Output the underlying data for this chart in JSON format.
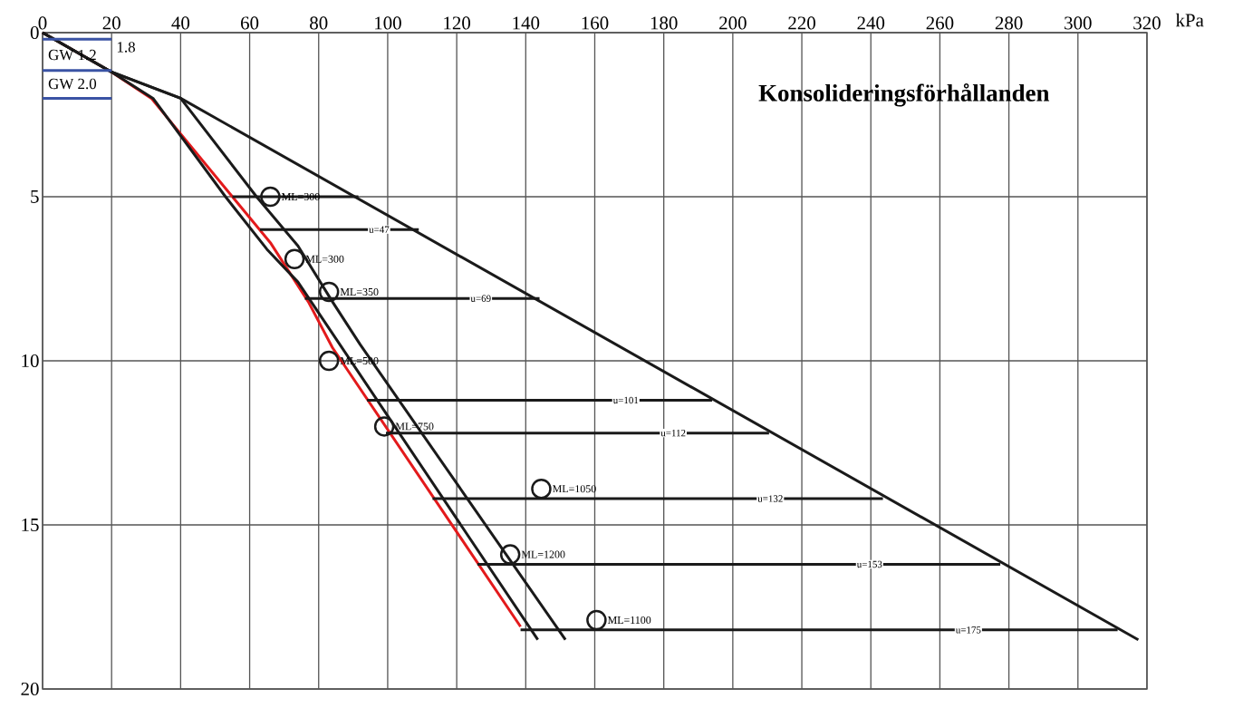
{
  "chart_data": {
    "type": "line",
    "title": "Konsolideringsförhållanden",
    "xlabel": "kPa",
    "xlim": [
      0,
      320
    ],
    "xticks": [
      0,
      20,
      40,
      60,
      80,
      100,
      120,
      140,
      160,
      180,
      200,
      220,
      240,
      260,
      280,
      300,
      320
    ],
    "ylim": [
      20,
      0
    ],
    "yticks": [
      0,
      5,
      10,
      15,
      20
    ],
    "grid": true,
    "series": [
      {
        "color": "#e31a1c",
        "x": [
          0,
          20,
          31.5,
          55,
          66,
          77,
          84,
          138.5
        ],
        "values": [
          0,
          1.2,
          2,
          5,
          6.4,
          8.2,
          9.6,
          18.1
        ]
      },
      {
        "color": "#1a1a1a",
        "x": [
          0,
          20,
          32,
          53,
          65,
          74,
          143.5
        ],
        "values": [
          0,
          1.2,
          2,
          5,
          6.6,
          7.6,
          18.5
        ]
      },
      {
        "color": "#1a1a1a",
        "x": [
          0,
          20,
          40,
          62,
          74,
          84,
          92,
          151.5
        ],
        "values": [
          0,
          1.2,
          2,
          5,
          6.5,
          8.2,
          9.5,
          18.5
        ]
      },
      {
        "color": "#1a1a1a",
        "x": [
          0,
          20,
          40,
          317.5
        ],
        "values": [
          0,
          1.2,
          2,
          18.5
        ]
      },
      {
        "type": "line",
        "color": "#1a1a1a",
        "x": [
          55,
          91.5
        ],
        "values": [
          5,
          5
        ]
      },
      {
        "type": "line",
        "name": "u=47",
        "color": "#1a1a1a",
        "x": [
          63,
          109
        ],
        "values": [
          6,
          6
        ]
      },
      {
        "type": "line",
        "name": "u=69",
        "color": "#1a1a1a",
        "x": [
          76,
          144
        ],
        "values": [
          8.1,
          8.1
        ]
      },
      {
        "type": "line",
        "name": "u=101",
        "color": "#1a1a1a",
        "x": [
          94,
          194
        ],
        "values": [
          11.2,
          11.2
        ]
      },
      {
        "type": "line",
        "name": "u=112",
        "color": "#1a1a1a",
        "x": [
          99.5,
          210.5
        ],
        "values": [
          12.2,
          12.2
        ]
      },
      {
        "type": "line",
        "name": "u=132",
        "color": "#1a1a1a",
        "x": [
          113,
          243.5
        ],
        "values": [
          14.2,
          14.2
        ]
      },
      {
        "type": "line",
        "name": "u=153",
        "color": "#1a1a1a",
        "x": [
          126,
          277.5
        ],
        "values": [
          16.2,
          16.2
        ]
      },
      {
        "type": "line",
        "name": "u=175",
        "color": "#1a1a1a",
        "x": [
          138.5,
          311.5
        ],
        "values": [
          18.2,
          18.2
        ]
      },
      {
        "type": "line",
        "color": "#3a53a4",
        "x": [
          0,
          20
        ],
        "values": [
          0.2,
          0.2
        ]
      },
      {
        "type": "line",
        "color": "#3a53a4",
        "x": [
          0,
          20
        ],
        "values": [
          1.15,
          1.15
        ]
      },
      {
        "type": "line",
        "color": "#3a53a4",
        "x": [
          0,
          20
        ],
        "values": [
          2,
          2
        ]
      },
      {
        "type": "scatter",
        "marker": "circle",
        "color": "#1a1a1a",
        "x": [
          66,
          73,
          83,
          83,
          99,
          144.5,
          135.5,
          160.5
        ],
        "values": [
          5,
          6.9,
          7.9,
          10,
          12,
          13.9,
          15.9,
          17.9
        ]
      }
    ],
    "annotations": [
      {
        "text": "ML=300",
        "x": 66,
        "y": 5
      },
      {
        "text": "ML=300",
        "x": 73,
        "y": 6.9
      },
      {
        "text": "ML=350",
        "x": 83,
        "y": 7.9
      },
      {
        "text": "ML=500",
        "x": 83,
        "y": 10
      },
      {
        "text": "ML=750",
        "x": 99,
        "y": 12
      },
      {
        "text": "ML=1050",
        "x": 144.5,
        "y": 13.9
      },
      {
        "text": "ML=1200",
        "x": 135.5,
        "y": 15.9
      },
      {
        "text": "ML=1100",
        "x": 160.5,
        "y": 17.9
      },
      "GW 1.2",
      "GW 2.0",
      "1.8"
    ]
  }
}
